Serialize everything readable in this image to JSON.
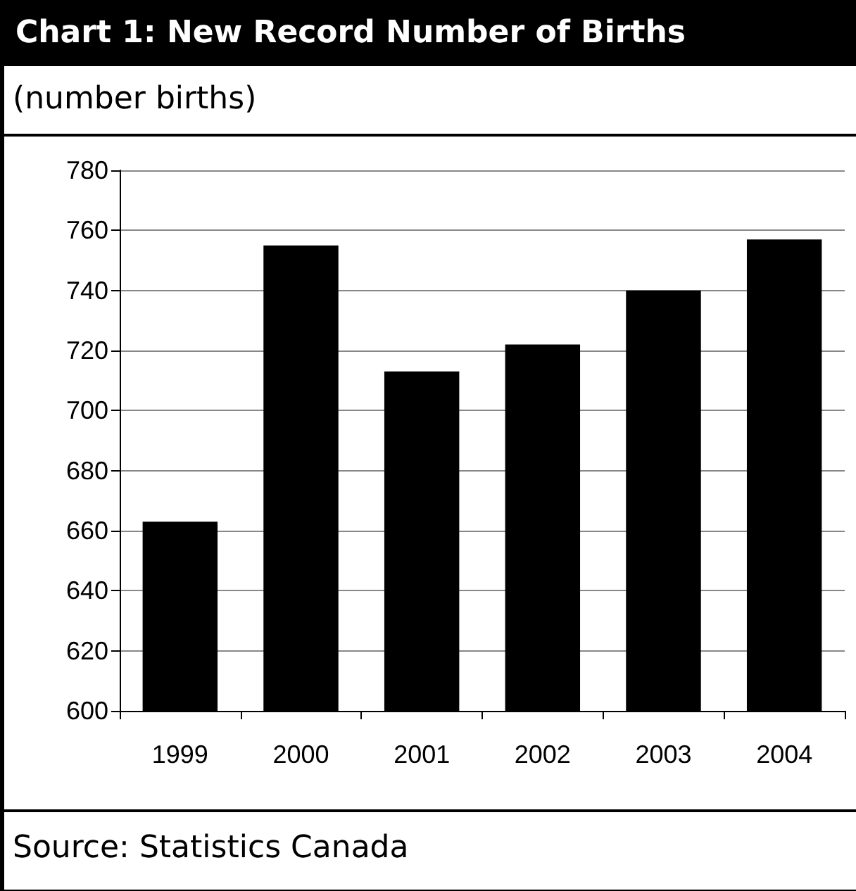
{
  "chart_data": {
    "type": "bar",
    "title": "Chart 1: New Record Number of Births",
    "subtitle": "(number births)",
    "categories": [
      "1999",
      "2000",
      "2001",
      "2002",
      "2003",
      "2004"
    ],
    "values": [
      663,
      755,
      713,
      722,
      740,
      757
    ],
    "color": "#000000",
    "ylim": [
      600,
      780
    ],
    "yticks": [
      600,
      620,
      640,
      660,
      680,
      700,
      720,
      740,
      760,
      780
    ],
    "grid": "y",
    "annotations": [
      "Source: Statistics Canada"
    ]
  }
}
